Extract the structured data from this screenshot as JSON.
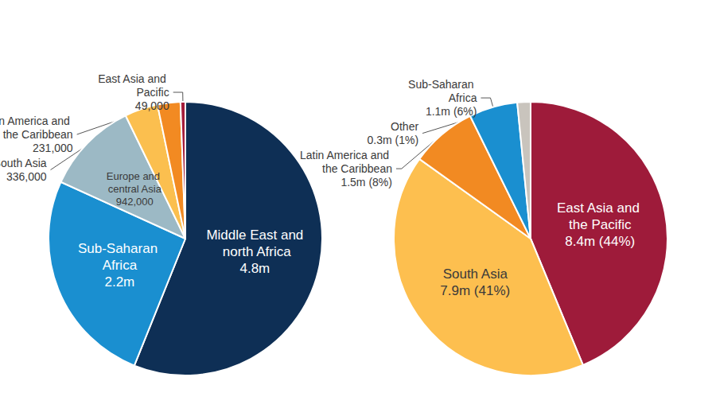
{
  "chart_data": [
    {
      "type": "pie",
      "categories": [
        "Middle East and north Africa",
        "Sub-Saharan Africa",
        "Europe and central Asia",
        "South Asia",
        "Latin America and the Caribbean",
        "East Asia and Pacific"
      ],
      "values": [
        4800000,
        2200000,
        942000,
        336000,
        231000,
        49000
      ],
      "value_labels": [
        "4.8m",
        "2.2m",
        "942,000",
        "336,000",
        "231,000",
        "49,000"
      ],
      "colors": [
        "#0e2f55",
        "#1a8fd0",
        "#9cb9c5",
        "#fbbf4f",
        "#f28a22",
        "#a51d3b"
      ],
      "data_labels": true
    },
    {
      "type": "pie",
      "categories": [
        "East Asia and the Pacific",
        "South Asia",
        "Latin America and the Caribbean",
        "Sub-Saharan Africa",
        "Other"
      ],
      "values": [
        8400000,
        7900000,
        1500000,
        1100000,
        300000
      ],
      "value_labels": [
        "8.4m (44%)",
        "7.9m (41%)",
        "1.5m (8%)",
        "1.1m (6%)",
        "0.3m (1%)"
      ],
      "colors": [
        "#9e1b3a",
        "#fdbf4f",
        "#f28a22",
        "#1a8fd0",
        "#c9c4bd"
      ],
      "data_labels": true
    }
  ]
}
